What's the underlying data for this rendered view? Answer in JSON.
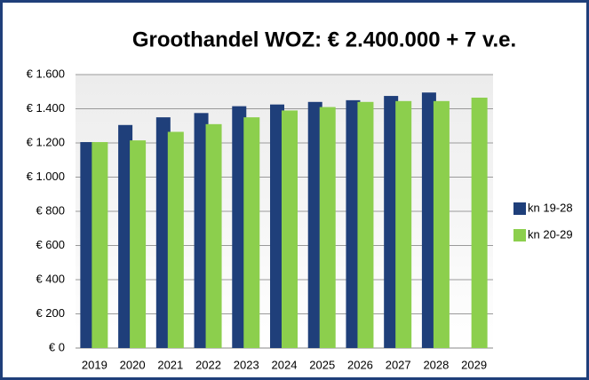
{
  "chart_data": {
    "type": "bar",
    "title": "Groothandel WOZ: € 2.400.000 + 7 v.e.",
    "categories": [
      "2019",
      "2020",
      "2021",
      "2022",
      "2023",
      "2024",
      "2025",
      "2026",
      "2027",
      "2028",
      "2029"
    ],
    "series": [
      {
        "name": "kn 19-28",
        "color": "#1f3f7a",
        "values": [
          1205,
          1305,
          1350,
          1375,
          1415,
          1425,
          1440,
          1450,
          1475,
          1495,
          null
        ]
      },
      {
        "name": "kn 20-29",
        "color": "#8ccf4d",
        "values": [
          1205,
          1215,
          1265,
          1310,
          1350,
          1390,
          1410,
          1440,
          1445,
          1445,
          1465
        ]
      }
    ],
    "ylim": [
      0,
      1600
    ],
    "yticks": [
      {
        "value": 0,
        "label": "€ 0"
      },
      {
        "value": 200,
        "label": "€ 200"
      },
      {
        "value": 400,
        "label": "€ 400"
      },
      {
        "value": 600,
        "label": "€ 600"
      },
      {
        "value": 800,
        "label": "€ 800"
      },
      {
        "value": 1000,
        "label": "€ 1.000"
      },
      {
        "value": 1200,
        "label": "€ 1.200"
      },
      {
        "value": 1400,
        "label": "€ 1.400"
      },
      {
        "value": 1600,
        "label": "€ 1.600"
      }
    ],
    "grid": true,
    "legend": "right"
  }
}
